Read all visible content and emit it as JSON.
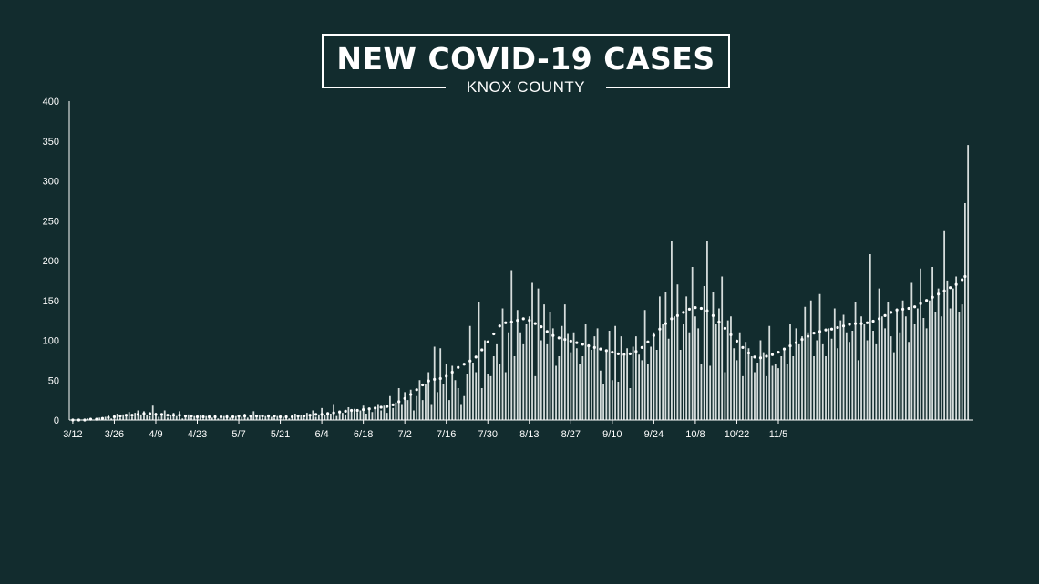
{
  "chart_data": {
    "type": "bar",
    "title": "NEW COVID-19 CASES",
    "subtitle": "KNOX COUNTY",
    "xlabel": "",
    "ylabel": "",
    "ylim": [
      0,
      400
    ],
    "y_ticks": [
      0,
      50,
      100,
      150,
      200,
      250,
      300,
      350,
      400
    ],
    "x_tick_labels": [
      "3/12",
      "3/26",
      "4/9",
      "4/23",
      "5/7",
      "5/21",
      "6/4",
      "6/18",
      "7/2",
      "7/16",
      "7/30",
      "8/13",
      "8/27",
      "9/10",
      "9/24",
      "10/8",
      "10/22",
      "11/5"
    ],
    "x_tick_interval_days": 14,
    "grid": false,
    "bar_color": "#d6dddc",
    "line_color": "#ffffff",
    "series": [
      {
        "name": "",
        "type": "bar",
        "values": [
          0,
          0,
          1,
          0,
          0,
          2,
          1,
          0,
          1,
          3,
          2,
          4,
          6,
          2,
          5,
          8,
          3,
          7,
          6,
          10,
          4,
          9,
          12,
          7,
          11,
          6,
          5,
          18,
          9,
          4,
          7,
          12,
          3,
          6,
          9,
          5,
          11,
          2,
          4,
          7,
          3,
          5,
          4,
          6,
          2,
          5,
          4,
          3,
          6,
          2,
          4,
          5,
          7,
          3,
          4,
          5,
          6,
          4,
          8,
          3,
          5,
          11,
          4,
          6,
          3,
          5,
          7,
          4,
          3,
          5,
          6,
          4,
          3,
          2,
          5,
          8,
          4,
          6,
          3,
          9,
          5,
          12,
          4,
          7,
          15,
          6,
          10,
          8,
          20,
          5,
          12,
          9,
          7,
          16,
          11,
          14,
          10,
          12,
          18,
          8,
          14,
          10,
          15,
          20,
          12,
          18,
          9,
          30,
          15,
          22,
          40,
          20,
          35,
          25,
          38,
          12,
          30,
          50,
          25,
          45,
          60,
          20,
          92,
          35,
          90,
          45,
          70,
          25,
          68,
          50,
          40,
          20,
          30,
          58,
          118,
          72,
          60,
          148,
          40,
          100,
          58,
          55,
          80,
          95,
          70,
          140,
          60,
          110,
          188,
          80,
          138,
          110,
          95,
          120,
          130,
          172,
          55,
          165,
          100,
          145,
          95,
          135,
          115,
          68,
          80,
          118,
          145,
          108,
          85,
          110,
          90,
          70,
          80,
          120,
          95,
          88,
          105,
          115,
          62,
          45,
          88,
          112,
          50,
          118,
          48,
          105,
          80,
          90,
          40,
          92,
          105,
          82,
          75,
          138,
          70,
          92,
          110,
          88,
          155,
          120,
          160,
          102,
          225,
          130,
          170,
          88,
          120,
          155,
          110,
          192,
          130,
          115,
          70,
          168,
          225,
          68,
          160,
          120,
          140,
          180,
          60,
          125,
          130,
          90,
          75,
          110,
          55,
          98,
          90,
          80,
          60,
          72,
          100,
          85,
          55,
          118,
          68,
          70,
          65,
          80,
          90,
          70,
          120,
          80,
          115,
          95,
          105,
          142,
          110,
          150,
          80,
          100,
          158,
          95,
          80,
          115,
          102,
          140,
          90,
          125,
          132,
          110,
          98,
          112,
          148,
          75,
          130,
          120,
          100,
          208,
          112,
          95,
          165,
          130,
          115,
          148,
          105,
          85,
          140,
          110,
          150,
          130,
          98,
          172,
          120,
          140,
          190,
          128,
          115,
          150,
          192,
          135,
          165,
          130,
          238,
          175,
          140,
          165,
          180,
          135,
          145,
          272,
          345
        ]
      },
      {
        "name": "",
        "type": "line",
        "style": "dotted",
        "values": [
          0,
          0,
          0,
          0,
          0,
          1,
          1,
          1,
          1,
          1,
          2,
          2,
          3,
          3,
          4,
          4,
          5,
          5,
          6,
          6,
          6,
          7,
          7,
          7,
          8,
          8,
          8,
          8,
          7,
          7,
          7,
          7,
          6,
          6,
          6,
          6,
          6,
          5,
          5,
          5,
          5,
          4,
          4,
          4,
          4,
          4,
          4,
          4,
          4,
          4,
          4,
          4,
          4,
          4,
          4,
          4,
          5,
          5,
          5,
          5,
          5,
          5,
          5,
          5,
          5,
          5,
          5,
          5,
          5,
          5,
          4,
          4,
          4,
          4,
          4,
          5,
          5,
          5,
          5,
          6,
          6,
          6,
          7,
          7,
          7,
          8,
          8,
          9,
          9,
          9,
          10,
          10,
          11,
          11,
          12,
          12,
          12,
          13,
          13,
          13,
          14,
          14,
          15,
          15,
          16,
          16,
          17,
          18,
          19,
          21,
          23,
          25,
          27,
          29,
          32,
          35,
          38,
          41,
          44,
          47,
          49,
          50,
          51,
          51,
          52,
          53,
          55,
          57,
          60,
          63,
          66,
          68,
          70,
          72,
          74,
          76,
          79,
          83,
          88,
          93,
          98,
          103,
          108,
          113,
          118,
          121,
          122,
          123,
          123,
          124,
          125,
          126,
          127,
          126,
          125,
          123,
          121,
          119,
          117,
          114,
          111,
          108,
          106,
          104,
          103,
          102,
          101,
          100,
          99,
          98,
          97,
          96,
          95,
          94,
          93,
          92,
          91,
          90,
          89,
          88,
          87,
          86,
          85,
          84,
          83,
          83,
          82,
          82,
          83,
          84,
          86,
          88,
          91,
          94,
          98,
          102,
          106,
          110,
          114,
          118,
          121,
          124,
          127,
          129,
          131,
          133,
          135,
          137,
          139,
          140,
          141,
          141,
          140,
          139,
          137,
          134,
          131,
          127,
          123,
          119,
          115,
          111,
          107,
          103,
          99,
          95,
          91,
          87,
          84,
          81,
          79,
          78,
          78,
          79,
          80,
          81,
          82,
          83,
          85,
          87,
          89,
          91,
          93,
          95,
          97,
          99,
          101,
          103,
          105,
          107,
          109,
          110,
          111,
          112,
          113,
          113,
          114,
          115,
          116,
          117,
          118,
          119,
          120,
          120,
          121,
          121,
          121,
          122,
          122,
          123,
          124,
          125,
          127,
          129,
          131,
          133,
          135,
          137,
          138,
          139,
          139,
          140,
          140,
          141,
          142,
          144,
          146,
          148,
          150,
          152,
          154,
          156,
          158,
          160,
          162,
          164,
          166,
          168,
          170,
          173,
          176,
          180
        ]
      }
    ]
  }
}
